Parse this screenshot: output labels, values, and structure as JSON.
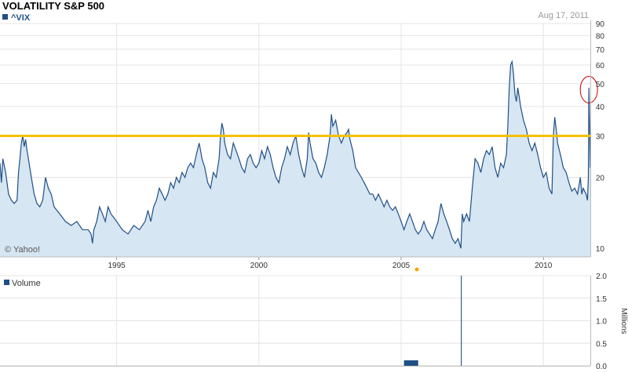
{
  "title": "VOLATILITY S&P 500",
  "date_label": "Aug 17, 2011",
  "copyright": "© Yahoo!",
  "colors": {
    "series_line": "#1f4f86",
    "series_fill": "#d6e6f2",
    "reference_line": "#f5c000",
    "grid": "#e4e4e4",
    "annotation_circle": "#cc0000",
    "volume_bar": "#1f4f86"
  },
  "chart_data": [
    {
      "type": "area",
      "legend": "^VIX",
      "scale": "log",
      "ylim": [
        9.2,
        90
      ],
      "y_ticks": [
        10,
        20,
        30,
        40,
        50,
        60,
        70,
        80,
        90
      ],
      "x_ticks": [
        1995,
        2000,
        2005,
        2010
      ],
      "xlim": [
        1990.9,
        2011.65
      ],
      "reference_line": 30,
      "annotation": {
        "type": "circle",
        "x": 2011.6,
        "y": 49
      },
      "grid": true,
      "series": [
        {
          "values": [
            [
              1990.9,
              23
            ],
            [
              1990.95,
              19
            ],
            [
              1991.0,
              24
            ],
            [
              1991.1,
              21
            ],
            [
              1991.2,
              17
            ],
            [
              1991.3,
              16
            ],
            [
              1991.4,
              15.5
            ],
            [
              1991.5,
              16
            ],
            [
              1991.55,
              21
            ],
            [
              1991.6,
              24
            ],
            [
              1991.65,
              28
            ],
            [
              1991.7,
              30
            ],
            [
              1991.75,
              27
            ],
            [
              1991.8,
              29
            ],
            [
              1991.85,
              26
            ],
            [
              1991.9,
              24
            ],
            [
              1992.0,
              20
            ],
            [
              1992.1,
              17
            ],
            [
              1992.2,
              15.5
            ],
            [
              1992.3,
              15
            ],
            [
              1992.4,
              16
            ],
            [
              1992.5,
              20
            ],
            [
              1992.6,
              18
            ],
            [
              1992.7,
              17
            ],
            [
              1992.8,
              15
            ],
            [
              1992.9,
              14.5
            ],
            [
              1993.0,
              14
            ],
            [
              1993.2,
              13
            ],
            [
              1993.4,
              12.5
            ],
            [
              1993.6,
              13
            ],
            [
              1993.8,
              12
            ],
            [
              1994.0,
              12
            ],
            [
              1994.1,
              11.5
            ],
            [
              1994.15,
              10.5
            ],
            [
              1994.2,
              12
            ],
            [
              1994.3,
              13
            ],
            [
              1994.4,
              15
            ],
            [
              1994.5,
              14
            ],
            [
              1994.6,
              13
            ],
            [
              1994.7,
              15
            ],
            [
              1994.8,
              14
            ],
            [
              1994.9,
              13.5
            ],
            [
              1995.0,
              13
            ],
            [
              1995.2,
              12
            ],
            [
              1995.4,
              11.5
            ],
            [
              1995.6,
              12.5
            ],
            [
              1995.8,
              12
            ],
            [
              1996.0,
              13
            ],
            [
              1996.1,
              14.5
            ],
            [
              1996.2,
              13
            ],
            [
              1996.3,
              15
            ],
            [
              1996.4,
              16
            ],
            [
              1996.5,
              18
            ],
            [
              1996.6,
              17
            ],
            [
              1996.7,
              16
            ],
            [
              1996.8,
              17
            ],
            [
              1996.9,
              19
            ],
            [
              1997.0,
              18
            ],
            [
              1997.1,
              20
            ],
            [
              1997.2,
              19
            ],
            [
              1997.3,
              21
            ],
            [
              1997.4,
              20
            ],
            [
              1997.5,
              22
            ],
            [
              1997.6,
              23
            ],
            [
              1997.7,
              22
            ],
            [
              1997.8,
              25
            ],
            [
              1997.9,
              28
            ],
            [
              1997.95,
              26
            ],
            [
              1998.0,
              24
            ],
            [
              1998.1,
              22
            ],
            [
              1998.2,
              19
            ],
            [
              1998.3,
              18
            ],
            [
              1998.4,
              21
            ],
            [
              1998.5,
              20
            ],
            [
              1998.6,
              24
            ],
            [
              1998.65,
              30
            ],
            [
              1998.7,
              34
            ],
            [
              1998.75,
              32
            ],
            [
              1998.8,
              28
            ],
            [
              1998.9,
              25
            ],
            [
              1999.0,
              24
            ],
            [
              1999.1,
              28
            ],
            [
              1999.2,
              26
            ],
            [
              1999.3,
              24
            ],
            [
              1999.4,
              22
            ],
            [
              1999.5,
              21
            ],
            [
              1999.6,
              24
            ],
            [
              1999.7,
              25
            ],
            [
              1999.8,
              23
            ],
            [
              1999.9,
              22
            ],
            [
              2000.0,
              23
            ],
            [
              2000.1,
              26
            ],
            [
              2000.2,
              24
            ],
            [
              2000.3,
              27
            ],
            [
              2000.4,
              25
            ],
            [
              2000.5,
              22
            ],
            [
              2000.6,
              20
            ],
            [
              2000.7,
              19
            ],
            [
              2000.8,
              22
            ],
            [
              2000.9,
              24
            ],
            [
              2001.0,
              27
            ],
            [
              2001.1,
              25
            ],
            [
              2001.2,
              28
            ],
            [
              2001.3,
              30
            ],
            [
              2001.4,
              25
            ],
            [
              2001.5,
              22
            ],
            [
              2001.6,
              20
            ],
            [
              2001.7,
              24
            ],
            [
              2001.75,
              31
            ],
            [
              2001.8,
              28
            ],
            [
              2001.9,
              24
            ],
            [
              2002.0,
              23
            ],
            [
              2002.1,
              21
            ],
            [
              2002.2,
              20
            ],
            [
              2002.3,
              22
            ],
            [
              2002.4,
              25
            ],
            [
              2002.5,
              30
            ],
            [
              2002.55,
              37
            ],
            [
              2002.6,
              33
            ],
            [
              2002.7,
              35
            ],
            [
              2002.8,
              30
            ],
            [
              2002.9,
              28
            ],
            [
              2003.0,
              30
            ],
            [
              2003.1,
              31
            ],
            [
              2003.15,
              32
            ],
            [
              2003.2,
              29
            ],
            [
              2003.3,
              26
            ],
            [
              2003.4,
              22
            ],
            [
              2003.5,
              21
            ],
            [
              2003.6,
              20
            ],
            [
              2003.7,
              19
            ],
            [
              2003.8,
              18
            ],
            [
              2003.9,
              17
            ],
            [
              2004.0,
              17
            ],
            [
              2004.1,
              16
            ],
            [
              2004.2,
              17
            ],
            [
              2004.3,
              16
            ],
            [
              2004.4,
              15
            ],
            [
              2004.5,
              16
            ],
            [
              2004.6,
              15
            ],
            [
              2004.7,
              14.5
            ],
            [
              2004.8,
              15
            ],
            [
              2004.9,
              14
            ],
            [
              2005.0,
              13
            ],
            [
              2005.1,
              12
            ],
            [
              2005.2,
              13
            ],
            [
              2005.3,
              14
            ],
            [
              2005.4,
              13
            ],
            [
              2005.5,
              12
            ],
            [
              2005.6,
              11.5
            ],
            [
              2005.7,
              12
            ],
            [
              2005.8,
              13
            ],
            [
              2005.9,
              12
            ],
            [
              2006.0,
              11.5
            ],
            [
              2006.1,
              11
            ],
            [
              2006.2,
              12
            ],
            [
              2006.3,
              13
            ],
            [
              2006.4,
              15.5
            ],
            [
              2006.5,
              14
            ],
            [
              2006.6,
              13
            ],
            [
              2006.7,
              12
            ],
            [
              2006.8,
              11
            ],
            [
              2006.9,
              10.5
            ],
            [
              2007.0,
              11
            ],
            [
              2007.1,
              10
            ],
            [
              2007.15,
              14
            ],
            [
              2007.2,
              13
            ],
            [
              2007.3,
              14
            ],
            [
              2007.4,
              13
            ],
            [
              2007.5,
              18
            ],
            [
              2007.6,
              24
            ],
            [
              2007.7,
              23
            ],
            [
              2007.8,
              21
            ],
            [
              2007.9,
              24
            ],
            [
              2008.0,
              26
            ],
            [
              2008.1,
              25
            ],
            [
              2008.2,
              27
            ],
            [
              2008.3,
              22
            ],
            [
              2008.4,
              20
            ],
            [
              2008.5,
              23
            ],
            [
              2008.6,
              22
            ],
            [
              2008.7,
              25
            ],
            [
              2008.75,
              33
            ],
            [
              2008.8,
              48
            ],
            [
              2008.85,
              60
            ],
            [
              2008.9,
              62
            ],
            [
              2008.95,
              55
            ],
            [
              2009.0,
              45
            ],
            [
              2009.05,
              42
            ],
            [
              2009.1,
              48
            ],
            [
              2009.15,
              44
            ],
            [
              2009.2,
              40
            ],
            [
              2009.3,
              35
            ],
            [
              2009.4,
              32
            ],
            [
              2009.5,
              28
            ],
            [
              2009.6,
              26
            ],
            [
              2009.7,
              28
            ],
            [
              2009.8,
              25
            ],
            [
              2009.9,
              22
            ],
            [
              2010.0,
              20
            ],
            [
              2010.1,
              21
            ],
            [
              2010.2,
              18
            ],
            [
              2010.3,
              17
            ],
            [
              2010.35,
              30
            ],
            [
              2010.4,
              36
            ],
            [
              2010.45,
              32
            ],
            [
              2010.5,
              28
            ],
            [
              2010.6,
              25
            ],
            [
              2010.7,
              22
            ],
            [
              2010.8,
              21
            ],
            [
              2010.9,
              19
            ],
            [
              2011.0,
              17.5
            ],
            [
              2011.1,
              18
            ],
            [
              2011.2,
              17
            ],
            [
              2011.3,
              20
            ],
            [
              2011.35,
              17
            ],
            [
              2011.4,
              18
            ],
            [
              2011.5,
              17
            ],
            [
              2011.55,
              16
            ],
            [
              2011.58,
              20
            ],
            [
              2011.6,
              48
            ],
            [
              2011.63,
              31
            ],
            [
              2011.65,
              22
            ]
          ]
        }
      ]
    },
    {
      "type": "bar",
      "legend": "Volume",
      "ylabel": "Millions",
      "ylim": [
        0,
        2.0
      ],
      "y_ticks": [
        "0.0",
        "0.5",
        "1.0",
        "1.5",
        "2.0"
      ],
      "bars": [
        {
          "x_start": 2005.1,
          "x_end": 2005.6,
          "value": 0.12
        },
        {
          "x_start": 2007.1,
          "x_end": 2007.13,
          "value": 2.0
        }
      ]
    }
  ]
}
